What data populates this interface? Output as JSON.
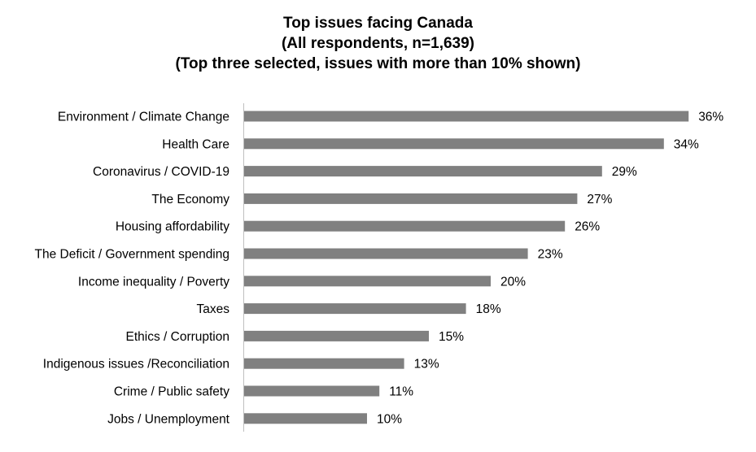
{
  "chart_data": {
    "type": "bar",
    "orientation": "horizontal",
    "title_lines": [
      "Top issues facing Canada",
      "(All respondents, n=1,639)",
      "(Top three selected, issues with more than 10% shown)"
    ],
    "categories": [
      "Environment / Climate Change",
      "Health Care",
      "Coronavirus / COVID-19",
      "The Economy",
      "Housing affordability",
      "The Deficit / Government spending",
      "Income inequality / Poverty",
      "Taxes",
      "Ethics / Corruption",
      "Indigenous issues /Reconciliation",
      "Crime / Public safety",
      "Jobs / Unemployment"
    ],
    "values": [
      36,
      34,
      29,
      27,
      26,
      23,
      20,
      18,
      15,
      13,
      11,
      10
    ],
    "value_labels": [
      "36%",
      "34%",
      "29%",
      "27%",
      "26%",
      "23%",
      "20%",
      "18%",
      "15%",
      "13%",
      "11%",
      "10%"
    ],
    "unit": "%",
    "bar_color": "#808080",
    "axis_color": "#bfbfbf",
    "grid": false,
    "legend": "none"
  }
}
